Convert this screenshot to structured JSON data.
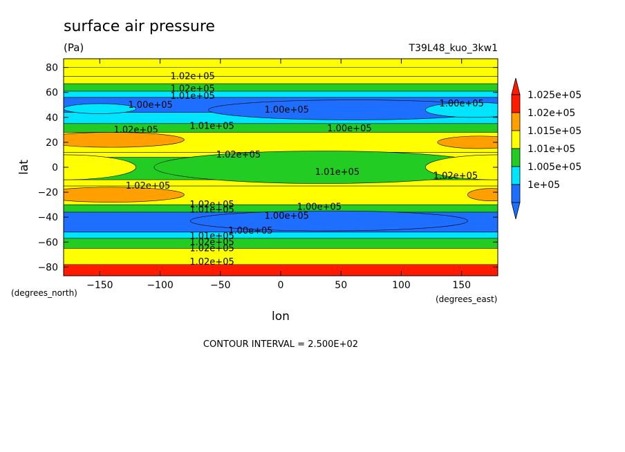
{
  "chart_data": {
    "type": "heatmap",
    "title": "surface air pressure",
    "units": "(Pa)",
    "dataset": "T39L48_kuo_3kw1",
    "xlabel": "lon",
    "ylabel": "lat",
    "x_units": "(degrees_east)",
    "y_units": "(degrees_north)",
    "xlim": [
      -180,
      180
    ],
    "ylim": [
      -87,
      87
    ],
    "x_ticks": [
      -150,
      -100,
      -50,
      0,
      50,
      100,
      150
    ],
    "y_ticks": [
      -80,
      -60,
      -40,
      -20,
      0,
      20,
      40,
      60,
      80
    ],
    "footer": "CONTOUR INTERVAL = 2.500E+02",
    "colorbar": {
      "levels": [
        100000,
        100500,
        101000,
        101500,
        102000,
        102500
      ],
      "labels": [
        "1e+05",
        "1.005e+05",
        "1.01e+05",
        "1.015e+05",
        "1.02e+05",
        "1.025e+05"
      ],
      "colors": [
        "#1e6eff",
        "#00e5ff",
        "#22cc22",
        "#ffff00",
        "#ff9f00",
        "#ff1a00"
      ],
      "under_color": "#1e6eff",
      "over_color": "#ff1a00"
    },
    "bands": [
      {
        "lat": [
          80,
          87
        ],
        "value": 101950
      },
      {
        "lat": [
          73,
          80
        ],
        "value": 101850
      },
      {
        "lat": [
          67,
          73
        ],
        "value": 101650
      },
      {
        "lat": [
          61,
          67
        ],
        "value": 101250
      },
      {
        "lat": [
          56,
          61
        ],
        "value": 100750
      },
      {
        "lat": [
          44,
          56
        ],
        "value": 100350
      },
      {
        "lat": [
          35,
          44
        ],
        "value": 100800
      },
      {
        "lat": [
          28,
          35
        ],
        "value": 101400
      },
      {
        "lat": [
          12,
          28
        ],
        "value": 101800
      },
      {
        "lat": [
          8,
          12
        ],
        "value": 101600
      },
      {
        "lat": [
          -10,
          8
        ],
        "value": 101300
      },
      {
        "lat": [
          -15,
          -10
        ],
        "value": 101600
      },
      {
        "lat": [
          -30,
          -15
        ],
        "value": 101800
      },
      {
        "lat": [
          -36,
          -30
        ],
        "value": 101250
      },
      {
        "lat": [
          -52,
          -36
        ],
        "value": 100300
      },
      {
        "lat": [
          -57,
          -52
        ],
        "value": 100850
      },
      {
        "lat": [
          -65,
          -57
        ],
        "value": 101400
      },
      {
        "lat": [
          -78,
          -65
        ],
        "value": 101850
      },
      {
        "lat": [
          -87,
          -78
        ],
        "value": 102600
      }
    ],
    "features": [
      {
        "lon": 60,
        "lat": 46,
        "rx": 120,
        "ry": 8,
        "value": 100200
      },
      {
        "lon": -150,
        "lat": 47,
        "rx": 30,
        "ry": 4,
        "value": 100700
      },
      {
        "lon": 160,
        "lat": 46,
        "rx": 40,
        "ry": 6,
        "value": 100700
      },
      {
        "lon": -140,
        "lat": 22,
        "rx": 60,
        "ry": 6,
        "value": 102100
      },
      {
        "lon": 165,
        "lat": 20,
        "rx": 35,
        "ry": 5,
        "value": 102100
      },
      {
        "lon": -140,
        "lat": -22,
        "rx": 60,
        "ry": 6,
        "value": 102100
      },
      {
        "lon": 175,
        "lat": -22,
        "rx": 20,
        "ry": 5,
        "value": 102100
      },
      {
        "lon": 40,
        "lat": -43,
        "rx": 115,
        "ry": 8,
        "value": 100150
      },
      {
        "lon": 40,
        "lat": 0,
        "rx": 60,
        "ry": 6,
        "value": 100900
      },
      {
        "lon": 35,
        "lat": 0,
        "rx": 140,
        "ry": 13,
        "value": 101200
      },
      {
        "lon": -180,
        "lat": 0,
        "rx": 60,
        "ry": 10,
        "value": 101600
      },
      {
        "lon": 180,
        "lat": 0,
        "rx": 60,
        "ry": 10,
        "value": 101600
      }
    ],
    "contour_labels": [
      {
        "text": "1.02e+05",
        "lon": -73,
        "lat": 73
      },
      {
        "text": "1.02e+05",
        "lon": -73,
        "lat": 63
      },
      {
        "text": "1.01e+05",
        "lon": -73,
        "lat": 57
      },
      {
        "text": "1.00e+05",
        "lon": -108,
        "lat": 50
      },
      {
        "text": "1.00e+05",
        "lon": 5,
        "lat": 46
      },
      {
        "text": "1.00e+05",
        "lon": 150,
        "lat": 51
      },
      {
        "text": "1.01e+05",
        "lon": -57,
        "lat": 33
      },
      {
        "text": "1.00e+05",
        "lon": 57,
        "lat": 31
      },
      {
        "text": "1.02e+05",
        "lon": -120,
        "lat": 30
      },
      {
        "text": "1.02e+05",
        "lon": -35,
        "lat": 10
      },
      {
        "text": "1.01e+05",
        "lon": 47,
        "lat": -4
      },
      {
        "text": "1.02e+05",
        "lon": 145,
        "lat": -7
      },
      {
        "text": "1.02e+05",
        "lon": -110,
        "lat": -15
      },
      {
        "text": "1.02e+05",
        "lon": -57,
        "lat": -30
      },
      {
        "text": "1.01e+05",
        "lon": -57,
        "lat": -34
      },
      {
        "text": "1.00e+05",
        "lon": 32,
        "lat": -32
      },
      {
        "text": "1.00e+05",
        "lon": 5,
        "lat": -39
      },
      {
        "text": "1.00e+05",
        "lon": -25,
        "lat": -51
      },
      {
        "text": "1.01e+05",
        "lon": -57,
        "lat": -55
      },
      {
        "text": "1.02e+05",
        "lon": -57,
        "lat": -60
      },
      {
        "text": "1.02e+05",
        "lon": -57,
        "lat": -65
      },
      {
        "text": "1.02e+05",
        "lon": -57,
        "lat": -76
      }
    ]
  }
}
